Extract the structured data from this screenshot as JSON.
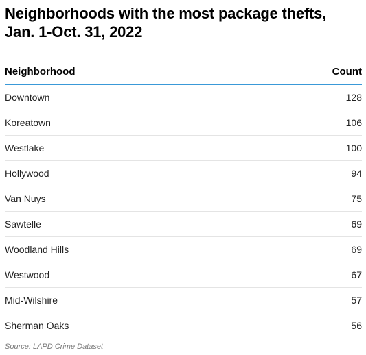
{
  "chart_data": {
    "type": "table",
    "title_lines": [
      "Neighborhoods with the most package thefts,",
      "Jan. 1-Oct. 31, 2022"
    ],
    "columns": [
      "Neighborhood",
      "Count"
    ],
    "rows": [
      {
        "neighborhood": "Downtown",
        "count": "128"
      },
      {
        "neighborhood": "Koreatown",
        "count": "106"
      },
      {
        "neighborhood": "Westlake",
        "count": "100"
      },
      {
        "neighborhood": "Hollywood",
        "count": "94"
      },
      {
        "neighborhood": "Van Nuys",
        "count": "75"
      },
      {
        "neighborhood": "Sawtelle",
        "count": "69"
      },
      {
        "neighborhood": "Woodland Hills",
        "count": "69"
      },
      {
        "neighborhood": "Westwood",
        "count": "67"
      },
      {
        "neighborhood": "Mid-Wilshire",
        "count": "57"
      },
      {
        "neighborhood": "Sherman Oaks",
        "count": "56"
      }
    ],
    "source": "Source: LAPD Crime Dataset"
  },
  "colors": {
    "header_rule": "#3a99d8"
  }
}
